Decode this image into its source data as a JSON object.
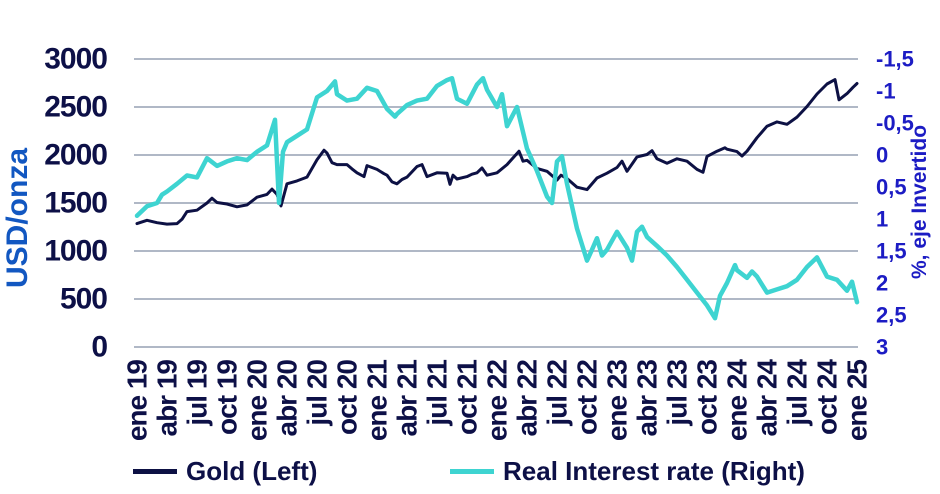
{
  "page": {
    "background": "#ffffff"
  },
  "colors": {
    "background": "#ffffff",
    "gridline": "#b0b8c6",
    "gold_line": "#0d1144",
    "rate_line": "#3ed4d1",
    "dark_text": "#0d1047",
    "right_axis_blue": "#1c1cc4",
    "left_title_blue": "#1257c1"
  },
  "chart_data": {
    "type": "line",
    "title": "",
    "grid": true,
    "legend_position": "bottom",
    "left_axis": {
      "label": "USD/onza",
      "min": 0,
      "max": 3000,
      "ticks": [
        "3000",
        "2500",
        "2000",
        "1500",
        "1000",
        "500",
        "0"
      ]
    },
    "right_axis": {
      "label": "%, eje Invertido",
      "inverted": true,
      "top_value": -1.5,
      "bottom_value": 3,
      "ticks": [
        "-1,5",
        "-1",
        "-0,5",
        "0",
        "0,5",
        "1",
        "1,5",
        "2",
        "2,5",
        "3"
      ]
    },
    "x_axis": {
      "months_per_tick": 3,
      "tick_labels": [
        "ene 19",
        "abr 19",
        "jul 19",
        "oct 19",
        "ene 20",
        "abr 20",
        "jul 20",
        "oct 20",
        "ene 21",
        "abr 21",
        "jul 21",
        "oct 21",
        "ene 22",
        "abr 22",
        "jul 22",
        "oct 22",
        "ene 23",
        "abr 23",
        "jul 23",
        "oct 23",
        "ene 24",
        "abr 24",
        "jul 24",
        "oct 24",
        "ene 25"
      ]
    },
    "series": [
      {
        "id": "gold",
        "name": "Gold (Left)",
        "axis": "left",
        "color": "#0d1144",
        "width": 3,
        "points": [
          [
            0,
            1285
          ],
          [
            1,
            1320
          ],
          [
            2,
            1295
          ],
          [
            3,
            1280
          ],
          [
            4,
            1285
          ],
          [
            4.5,
            1330
          ],
          [
            5,
            1410
          ],
          [
            6,
            1425
          ],
          [
            7,
            1500
          ],
          [
            7.5,
            1550
          ],
          [
            8,
            1505
          ],
          [
            9,
            1490
          ],
          [
            10,
            1460
          ],
          [
            11,
            1480
          ],
          [
            12,
            1560
          ],
          [
            13,
            1590
          ],
          [
            13.5,
            1645
          ],
          [
            14,
            1590
          ],
          [
            14.4,
            1470
          ],
          [
            15,
            1700
          ],
          [
            16,
            1730
          ],
          [
            17,
            1770
          ],
          [
            18,
            1950
          ],
          [
            18.7,
            2050
          ],
          [
            19,
            2020
          ],
          [
            19.5,
            1920
          ],
          [
            20,
            1900
          ],
          [
            21,
            1900
          ],
          [
            21.5,
            1855
          ],
          [
            22,
            1815
          ],
          [
            22.7,
            1775
          ],
          [
            23,
            1890
          ],
          [
            24,
            1850
          ],
          [
            24.7,
            1805
          ],
          [
            25,
            1790
          ],
          [
            25.5,
            1720
          ],
          [
            26,
            1700
          ],
          [
            26.5,
            1745
          ],
          [
            27,
            1770
          ],
          [
            28,
            1880
          ],
          [
            28.5,
            1900
          ],
          [
            29,
            1775
          ],
          [
            30,
            1815
          ],
          [
            31,
            1810
          ],
          [
            31.3,
            1695
          ],
          [
            31.6,
            1790
          ],
          [
            32,
            1750
          ],
          [
            33,
            1775
          ],
          [
            33.5,
            1800
          ],
          [
            34,
            1815
          ],
          [
            34.5,
            1865
          ],
          [
            35,
            1790
          ],
          [
            36,
            1815
          ],
          [
            37,
            1900
          ],
          [
            38.2,
            2040
          ],
          [
            38.6,
            1935
          ],
          [
            39,
            1945
          ],
          [
            40,
            1860
          ],
          [
            41,
            1830
          ],
          [
            42,
            1740
          ],
          [
            42.4,
            1790
          ],
          [
            43,
            1755
          ],
          [
            44,
            1665
          ],
          [
            45,
            1640
          ],
          [
            46,
            1760
          ],
          [
            47,
            1810
          ],
          [
            48,
            1870
          ],
          [
            48.5,
            1935
          ],
          [
            49,
            1830
          ],
          [
            50,
            1980
          ],
          [
            51,
            2005
          ],
          [
            51.5,
            2045
          ],
          [
            52,
            1960
          ],
          [
            53,
            1915
          ],
          [
            54,
            1960
          ],
          [
            55,
            1935
          ],
          [
            56,
            1850
          ],
          [
            56.6,
            1820
          ],
          [
            57,
            1985
          ],
          [
            58,
            2040
          ],
          [
            58.8,
            2075
          ],
          [
            59,
            2060
          ],
          [
            60,
            2035
          ],
          [
            60.5,
            1990
          ],
          [
            61,
            2040
          ],
          [
            62,
            2180
          ],
          [
            63,
            2300
          ],
          [
            64,
            2345
          ],
          [
            65,
            2320
          ],
          [
            66,
            2395
          ],
          [
            67,
            2505
          ],
          [
            68,
            2635
          ],
          [
            69,
            2740
          ],
          [
            69.8,
            2785
          ],
          [
            70.2,
            2575
          ],
          [
            71,
            2640
          ],
          [
            71.6,
            2705
          ],
          [
            72,
            2745
          ]
        ]
      },
      {
        "id": "real-rate",
        "name": "Real Interest rate (Right)",
        "axis": "right",
        "color": "#3ed4d1",
        "width": 4.5,
        "points": [
          [
            0,
            0.95
          ],
          [
            1,
            0.8
          ],
          [
            2,
            0.75
          ],
          [
            2.5,
            0.62
          ],
          [
            3,
            0.57
          ],
          [
            4,
            0.45
          ],
          [
            5,
            0.32
          ],
          [
            6,
            0.35
          ],
          [
            7,
            0.05
          ],
          [
            8,
            0.17
          ],
          [
            9,
            0.1
          ],
          [
            10,
            0.05
          ],
          [
            11,
            0.08
          ],
          [
            12,
            -0.05
          ],
          [
            13,
            -0.15
          ],
          [
            13.8,
            -0.55
          ],
          [
            14.2,
            0.75
          ],
          [
            14.6,
            -0.05
          ],
          [
            15,
            -0.2
          ],
          [
            16,
            -0.3
          ],
          [
            17,
            -0.4
          ],
          [
            18,
            -0.9
          ],
          [
            19,
            -1.0
          ],
          [
            19.8,
            -1.15
          ],
          [
            20,
            -0.95
          ],
          [
            21,
            -0.85
          ],
          [
            22,
            -0.88
          ],
          [
            23,
            -1.05
          ],
          [
            24,
            -1.0
          ],
          [
            25,
            -0.72
          ],
          [
            25.8,
            -0.6
          ],
          [
            26,
            -0.64
          ],
          [
            27,
            -0.78
          ],
          [
            28,
            -0.85
          ],
          [
            29,
            -0.88
          ],
          [
            30,
            -1.08
          ],
          [
            31,
            -1.17
          ],
          [
            31.5,
            -1.2
          ],
          [
            32,
            -0.88
          ],
          [
            33,
            -0.8
          ],
          [
            34,
            -1.1
          ],
          [
            34.6,
            -1.2
          ],
          [
            35,
            -1.02
          ],
          [
            36,
            -0.75
          ],
          [
            36.5,
            -0.95
          ],
          [
            37,
            -0.45
          ],
          [
            38,
            -0.75
          ],
          [
            39,
            -0.1
          ],
          [
            40,
            0.25
          ],
          [
            41,
            0.65
          ],
          [
            41.5,
            0.75
          ],
          [
            42,
            0.1
          ],
          [
            42.5,
            0.02
          ],
          [
            43,
            0.45
          ],
          [
            44,
            1.15
          ],
          [
            45,
            1.65
          ],
          [
            45.5,
            1.48
          ],
          [
            46,
            1.3
          ],
          [
            46.5,
            1.57
          ],
          [
            47,
            1.48
          ],
          [
            48,
            1.2
          ],
          [
            49,
            1.45
          ],
          [
            49.5,
            1.65
          ],
          [
            50,
            1.2
          ],
          [
            50.5,
            1.12
          ],
          [
            51,
            1.28
          ],
          [
            52,
            1.42
          ],
          [
            53,
            1.57
          ],
          [
            54,
            1.75
          ],
          [
            55,
            1.95
          ],
          [
            56,
            2.15
          ],
          [
            57,
            2.35
          ],
          [
            57.8,
            2.55
          ],
          [
            58.3,
            2.2
          ],
          [
            59,
            2.0
          ],
          [
            59.8,
            1.72
          ],
          [
            60,
            1.8
          ],
          [
            61,
            1.92
          ],
          [
            61.5,
            1.82
          ],
          [
            62,
            1.9
          ],
          [
            63,
            2.15
          ],
          [
            64,
            2.1
          ],
          [
            65,
            2.05
          ],
          [
            66,
            1.95
          ],
          [
            67,
            1.75
          ],
          [
            68,
            1.6
          ],
          [
            69,
            1.9
          ],
          [
            70,
            1.95
          ],
          [
            71,
            2.12
          ],
          [
            71.5,
            1.98
          ],
          [
            72,
            2.3
          ]
        ]
      }
    ]
  }
}
